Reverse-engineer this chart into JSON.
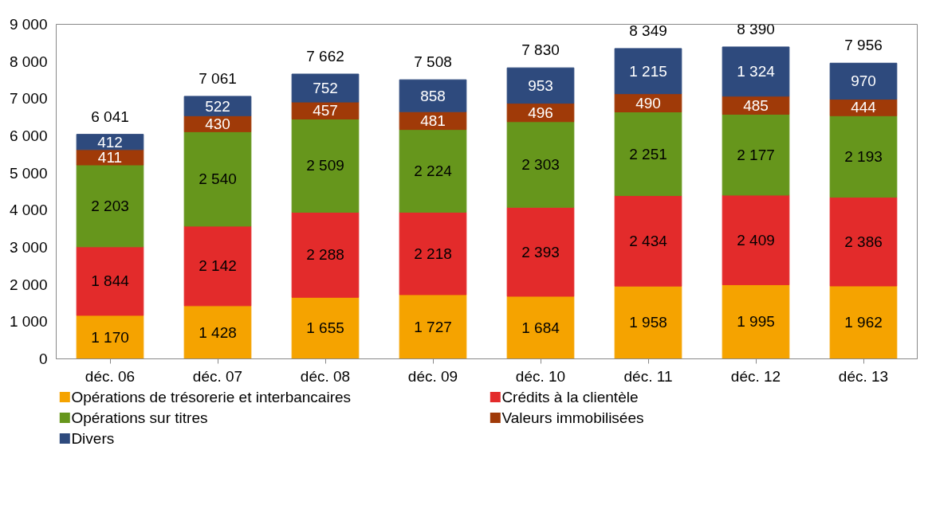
{
  "chart_data": {
    "type": "bar",
    "stacked": true,
    "categories": [
      "déc. 06",
      "déc. 07",
      "déc. 08",
      "déc. 09",
      "déc. 10",
      "déc. 11",
      "déc. 12",
      "déc. 13"
    ],
    "series": [
      {
        "name": "Opérations de trésorerie et interbancaires",
        "color": "#f5a300",
        "values": [
          1170,
          1428,
          1655,
          1727,
          1684,
          1958,
          1995,
          1962
        ],
        "value_labels": [
          "1 170",
          "1 428",
          "1 655",
          "1 727",
          "1 684",
          "1 958",
          "1 995",
          "1 962"
        ]
      },
      {
        "name": "Crédits à la clientèle",
        "color": "#e32b2b",
        "values": [
          1844,
          2142,
          2288,
          2218,
          2393,
          2434,
          2409,
          2386
        ],
        "value_labels": [
          "1 844",
          "2 142",
          "2 288",
          "2 218",
          "2 393",
          "2 434",
          "2 409",
          "2 386"
        ]
      },
      {
        "name": "Opérations sur titres",
        "color": "#66961c",
        "values": [
          2203,
          2540,
          2509,
          2224,
          2303,
          2251,
          2177,
          2193
        ],
        "value_labels": [
          "2 203",
          "2 540",
          "2 509",
          "2 224",
          "2 303",
          "2 251",
          "2 177",
          "2 193"
        ]
      },
      {
        "name": "Valeurs immobilisées",
        "color": "#a03a08",
        "values": [
          411,
          430,
          457,
          481,
          496,
          490,
          485,
          444
        ],
        "value_labels": [
          "411",
          "430",
          "457",
          "481",
          "496",
          "490",
          "485",
          "444"
        ]
      },
      {
        "name": "Divers",
        "color": "#2e4a7d",
        "values": [
          412,
          522,
          752,
          858,
          953,
          1215,
          1324,
          970
        ],
        "value_labels": [
          "412",
          "522",
          "752",
          "858",
          "953",
          "1 215",
          "1 324",
          "970"
        ]
      }
    ],
    "totals": [
      "6 041",
      "7 061",
      "7 662",
      "7 508",
      "7 830",
      "8 349",
      "8 390",
      "7 956"
    ],
    "ylim": [
      0,
      9000
    ],
    "yticks": [
      {
        "value": 0,
        "label": "0"
      },
      {
        "value": 1000,
        "label": "1 000"
      },
      {
        "value": 2000,
        "label": "2 000"
      },
      {
        "value": 3000,
        "label": "3 000"
      },
      {
        "value": 4000,
        "label": "4 000"
      },
      {
        "value": 5000,
        "label": "5 000"
      },
      {
        "value": 6000,
        "label": "6 000"
      },
      {
        "value": 7000,
        "label": "7 000"
      },
      {
        "value": 8000,
        "label": "8 000"
      },
      {
        "value": 9000,
        "label": "9 000"
      }
    ],
    "grid": false,
    "legend": "bottom"
  }
}
